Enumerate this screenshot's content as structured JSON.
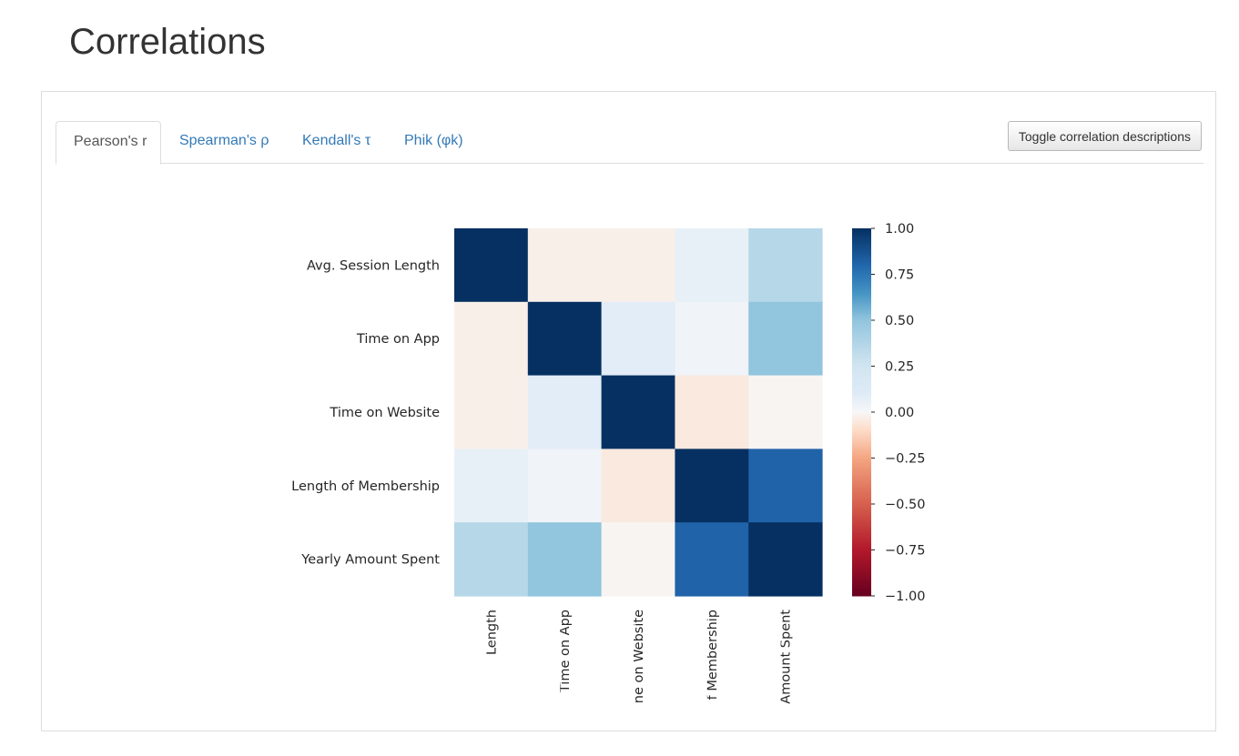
{
  "page": {
    "title": "Correlations"
  },
  "tabs": [
    {
      "label": "Pearson's r",
      "active": true
    },
    {
      "label": "Spearman's ρ",
      "active": false
    },
    {
      "label": "Kendall's τ",
      "active": false
    },
    {
      "label": "Phik (φk)",
      "active": false
    }
  ],
  "toggle_button": {
    "label": "Toggle correlation descriptions"
  },
  "chart_data": {
    "type": "heatmap",
    "rows": [
      "Avg. Session Length",
      "Time on App",
      "Time on Website",
      "Length of Membership",
      "Yearly Amount Spent"
    ],
    "columns_visible_labels": [
      "ession Length",
      "Time on App",
      "ne on Website",
      "f Membership",
      "Amount Spent"
    ],
    "values": [
      [
        1.0,
        -0.03,
        -0.03,
        0.06,
        0.36
      ],
      [
        -0.03,
        1.0,
        0.08,
        0.03,
        0.5
      ],
      [
        -0.03,
        0.08,
        1.0,
        -0.05,
        -0.01
      ],
      [
        0.06,
        0.03,
        -0.05,
        1.0,
        0.81
      ],
      [
        0.36,
        0.5,
        -0.01,
        0.81,
        1.0
      ]
    ],
    "colormap": "RdBu",
    "vmin": -1.0,
    "vmax": 1.0,
    "colorbar_ticks": [
      "1.00",
      "0.75",
      "0.50",
      "0.25",
      "0.00",
      "−0.25",
      "−0.50",
      "−0.75",
      "−1.00"
    ],
    "colorbar_tick_values": [
      1.0,
      0.75,
      0.5,
      0.25,
      0.0,
      -0.25,
      -0.5,
      -0.75,
      -1.0
    ]
  }
}
